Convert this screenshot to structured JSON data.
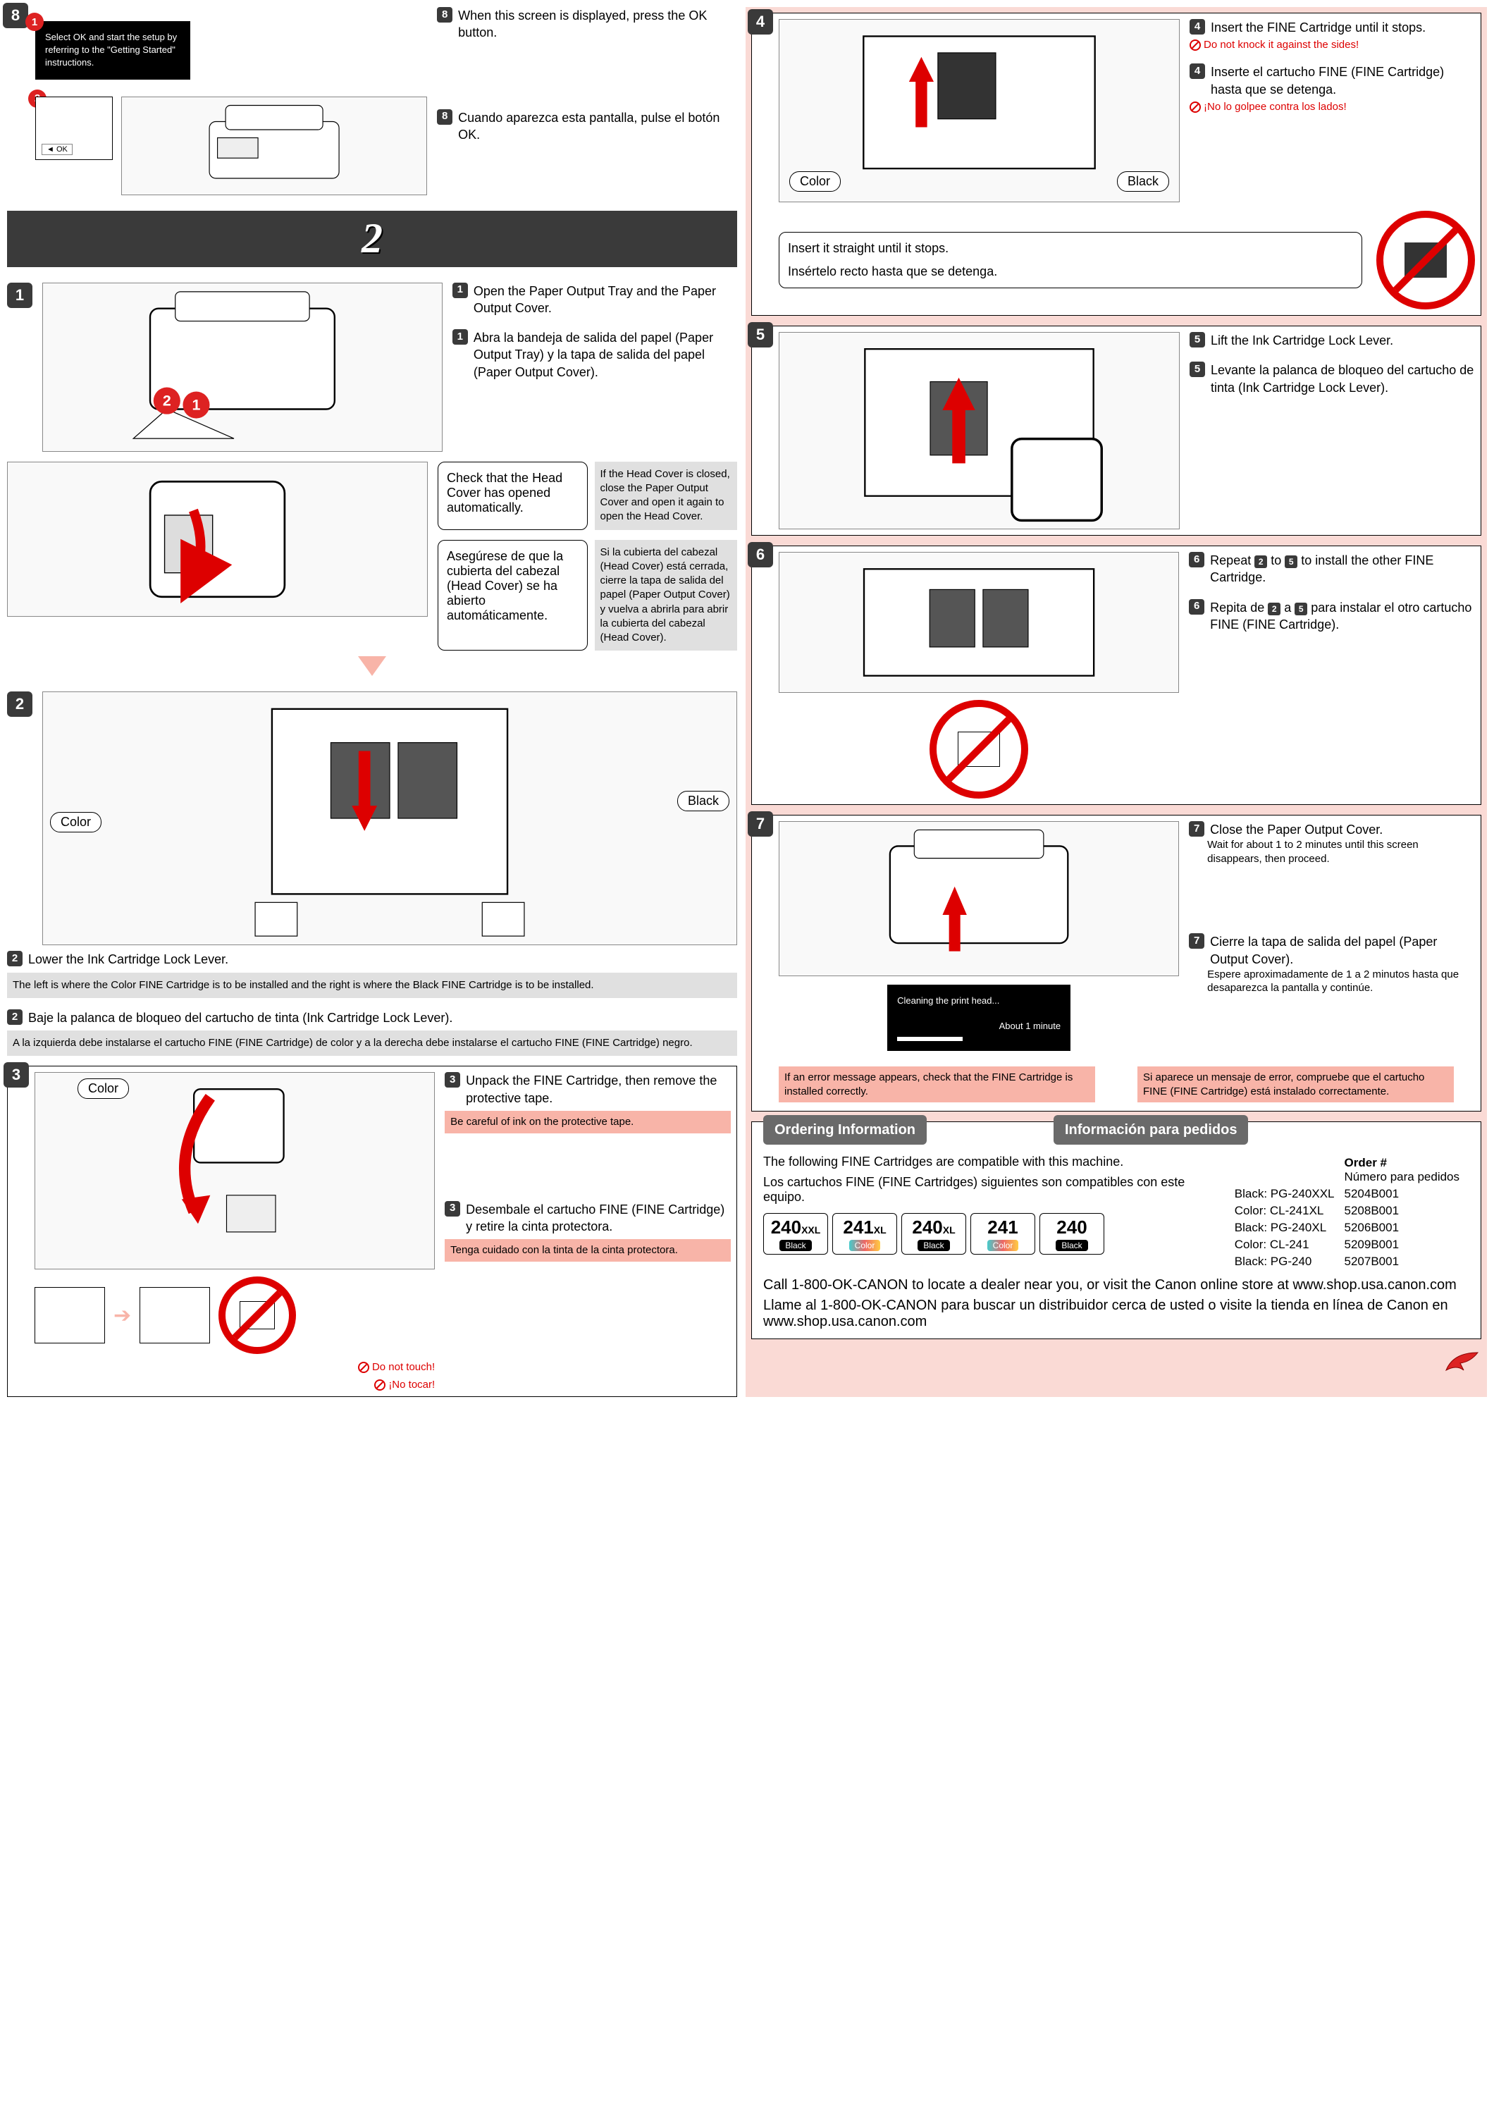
{
  "colors": {
    "pink": "#fadad5",
    "warn": "#f8b4a8",
    "dark": "#3a3a3a",
    "red": "#d00"
  },
  "left": {
    "s8": {
      "num": "8",
      "lcd": "Select OK and start the setup by referring to the \"Getting Started\" instructions.",
      "en": "When this screen is displayed, press the OK button.",
      "es": "Cuando aparezca esta pantalla, pulse el botón OK.",
      "ok": "OK"
    },
    "big2": "2",
    "s1": {
      "num": "1",
      "en": "Open the Paper Output Tray and the Paper Output Cover.",
      "es": "Abra la bandeja de salida del papel (Paper Output Tray) y la tapa de salida del papel (Paper Output Cover).",
      "check_en": "Check that the Head Cover has opened automatically.",
      "note_en": "If the Head Cover is closed, close the Paper Output Cover and open it again to open the Head Cover.",
      "check_es": "Asegúrese de que la cubierta del cabezal (Head Cover) se ha abierto automáticamente.",
      "note_es": "Si la cubierta del cabezal (Head Cover) está cerrada, cierre la tapa de salida del papel (Paper Output Cover) y vuelva a abrirla para abrir la cubierta del cabezal (Head Cover)."
    },
    "s2": {
      "num": "2",
      "color": "Color",
      "black": "Black",
      "en": "Lower the Ink Cartridge Lock Lever.",
      "en_note": "The left is where the Color FINE Cartridge is to be installed and the right is where the Black FINE Cartridge is to be installed.",
      "es": "Baje la palanca de bloqueo del cartucho de tinta (Ink Cartridge Lock Lever).",
      "es_note": "A la izquierda debe instalarse el cartucho FINE (FINE Cartridge) de color y a la derecha debe instalarse el cartucho FINE (FINE Cartridge) negro."
    },
    "s3": {
      "num": "3",
      "color": "Color",
      "en": "Unpack the FINE Cartridge, then remove the protective tape.",
      "en_warn": "Be careful of ink on the protective tape.",
      "es": "Desembale el cartucho FINE (FINE Cartridge) y retire la cinta protectora.",
      "es_warn": "Tenga cuidado con la tinta de la cinta protectora.",
      "no_en": "Do not touch!",
      "no_es": "¡No tocar!"
    }
  },
  "right": {
    "s4": {
      "num": "4",
      "color": "Color",
      "black": "Black",
      "en": "Insert the FINE Cartridge until it stops.",
      "en_warn": "Do not knock it against the sides!",
      "es": "Inserte el cartucho FINE (FINE Cartridge) hasta que se detenga.",
      "es_warn": "¡No lo golpee contra los lados!",
      "box_en": "Insert it straight until it stops.",
      "box_es": "Insértelo recto hasta que se detenga."
    },
    "s5": {
      "num": "5",
      "en": "Lift the Ink Cartridge Lock Lever.",
      "es": "Levante la palanca de bloqueo del cartucho de tinta (Ink Cartridge Lock Lever)."
    },
    "s6": {
      "num": "6",
      "en_a": "Repeat ",
      "en_b": " to ",
      "en_c": " to install the other FINE Cartridge.",
      "es_a": "Repita de ",
      "es_b": " a ",
      "es_c": " para instalar el otro cartucho FINE (FINE Cartridge).",
      "ref2": "2",
      "ref5": "5"
    },
    "s7": {
      "num": "7",
      "en": "Close the Paper Output Cover.",
      "en_sub": "Wait for about 1 to 2 minutes until this screen disappears, then proceed.",
      "es": "Cierre la tapa de salida del papel (Paper Output Cover).",
      "es_sub": "Espere aproximadamente de 1 a 2 minutos hasta que desaparezca la pantalla y continúe.",
      "lcd_a": "Cleaning the print head...",
      "lcd_b": "About 1 minute",
      "warn_en": "If an error message appears, check that the FINE Cartridge is installed correctly.",
      "warn_es": "Si aparece un mensaje de error, compruebe que el cartucho FINE (FINE Cartridge) está instalado correctamente."
    }
  },
  "ordering": {
    "head_en": "Ordering Information",
    "head_es": "Información para pedidos",
    "intro_en": "The following FINE Cartridges are compatible with this machine.",
    "intro_es": "Los cartuchos FINE (FINE Cartridges) siguientes son compatibles con este equipo.",
    "order_h_en": "Order #",
    "order_h_es": "Número para pedidos",
    "rows": [
      {
        "name": "Black: PG-240XXL",
        "code": "5204B001"
      },
      {
        "name": "Color: CL-241XL",
        "code": "5208B001"
      },
      {
        "name": "Black: PG-240XL",
        "code": "5206B001"
      },
      {
        "name": "Color: CL-241",
        "code": "5209B001"
      },
      {
        "name": "Black: PG-240",
        "code": "5207B001"
      }
    ],
    "badges": [
      {
        "num": "240",
        "suf": "XXL",
        "bar": "Black",
        "color": false
      },
      {
        "num": "241",
        "suf": "XL",
        "bar": "Color",
        "color": true
      },
      {
        "num": "240",
        "suf": "XL",
        "bar": "Black",
        "color": false
      },
      {
        "num": "241",
        "suf": "",
        "bar": "Color",
        "color": true
      },
      {
        "num": "240",
        "suf": "",
        "bar": "Black",
        "color": false
      }
    ],
    "call_en": "Call 1-800-OK-CANON to locate a dealer near you, or visit the Canon online store at www.shop.usa.canon.com",
    "call_es": "Llame al 1-800-OK-CANON para buscar un distribuidor cerca de usted o visite la tienda en línea de Canon en www.shop.usa.canon.com"
  }
}
